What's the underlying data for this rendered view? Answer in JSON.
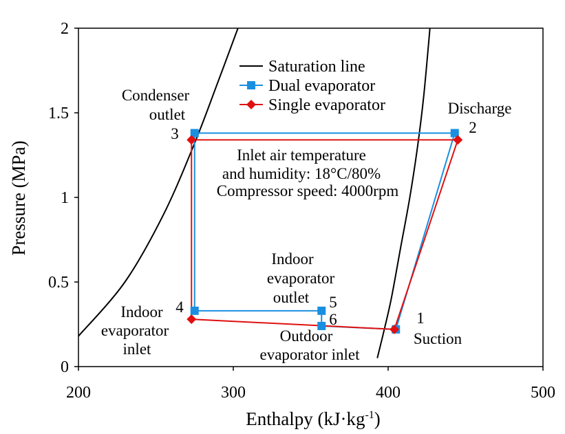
{
  "chart_data": {
    "type": "line",
    "xlabel": "Enthalpy (kJ·kg",
    "xlabel_sup": "-1",
    "xlabel_close": ")",
    "ylabel": "Pressure (MPa)",
    "xlim": [
      200,
      500
    ],
    "ylim": [
      0,
      2
    ],
    "x_ticks": [
      200,
      300,
      400,
      500
    ],
    "y_ticks": [
      0,
      0.5,
      1,
      1.5,
      2
    ],
    "y_tick_labels": [
      "0",
      "0.5",
      "1",
      "1.5",
      "2"
    ],
    "legend": [
      "Saturation line",
      "Dual evaporator",
      "Single evaporator"
    ],
    "saturation_liquid": {
      "x": [
        200,
        230,
        255,
        275,
        290,
        303
      ],
      "y": [
        0.18,
        0.5,
        0.9,
        1.32,
        1.68,
        2.0
      ]
    },
    "saturation_vapor": {
      "x": [
        393,
        397,
        402,
        408,
        414,
        419,
        423,
        427
      ],
      "y": [
        0.05,
        0.2,
        0.4,
        0.7,
        1.0,
        1.3,
        1.6,
        2.0
      ]
    },
    "series": [
      {
        "name": "Dual evaporator",
        "color": "#1a8fe0",
        "marker": "square",
        "x": [
          405,
          443,
          275,
          275,
          357,
          357,
          405
        ],
        "y": [
          0.22,
          1.38,
          1.38,
          0.33,
          0.33,
          0.24,
          0.22
        ]
      },
      {
        "name": "Single evaporator",
        "color": "#e11010",
        "marker": "diamond",
        "x": [
          404,
          445,
          273,
          273,
          404
        ],
        "y": [
          0.22,
          1.34,
          1.34,
          0.28,
          0.22
        ]
      }
    ],
    "annotations": {
      "condenser_outlet": [
        "Condenser",
        "outlet"
      ],
      "p3": "3",
      "p2": "2",
      "discharge": "Discharge",
      "p4": "4",
      "indoor_inlet": [
        "Indoor",
        "evaporator",
        "inlet"
      ],
      "indoor_outlet": [
        "Indoor",
        "evaporator",
        "outlet"
      ],
      "p5": "5",
      "p6": "6",
      "outdoor_inlet": [
        "Outdoor",
        "evaporator inlet"
      ],
      "p1": "1",
      "suction": "Suction",
      "conditions": [
        "Inlet air temperature",
        "and humidity: 18°C/80%",
        "Compressor speed: 4000rpm"
      ]
    }
  }
}
